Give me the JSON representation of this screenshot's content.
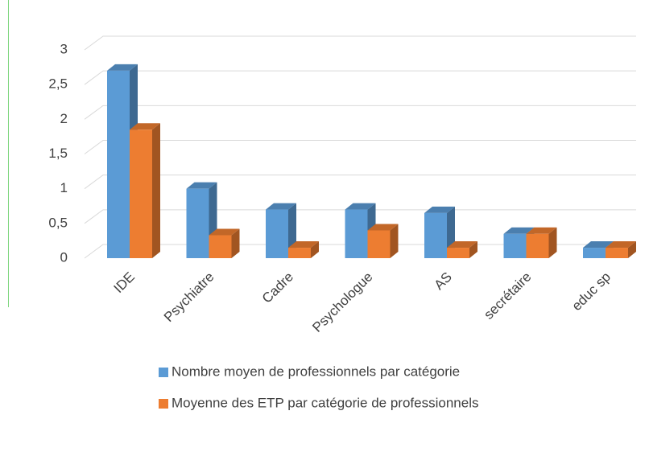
{
  "chart_data": {
    "type": "bar3d",
    "categories": [
      "IDE",
      "Psychiatre",
      "Cadre",
      "Psychologue",
      "AS",
      "secrétaire",
      "educ sp"
    ],
    "series": [
      {
        "name": "Nombre moyen de professionnels par catégorie",
        "color": "#5b9bd5",
        "values": [
          2.7,
          1.0,
          0.7,
          0.7,
          0.65,
          0.35,
          0.15
        ]
      },
      {
        "name": "Moyenne des ETP par catégorie de professionnels",
        "color": "#ed7d31",
        "values": [
          1.85,
          0.33,
          0.15,
          0.4,
          0.15,
          0.35,
          0.15
        ]
      }
    ],
    "ylim": [
      0,
      3
    ],
    "yticks": [
      0,
      {
        "value": 0.5,
        "label": "0,5"
      },
      1,
      {
        "value": 1.5,
        "label": "1,5"
      },
      2,
      {
        "value": 2.5,
        "label": "2,5"
      },
      3
    ],
    "grid": true,
    "legend": "bottom"
  }
}
